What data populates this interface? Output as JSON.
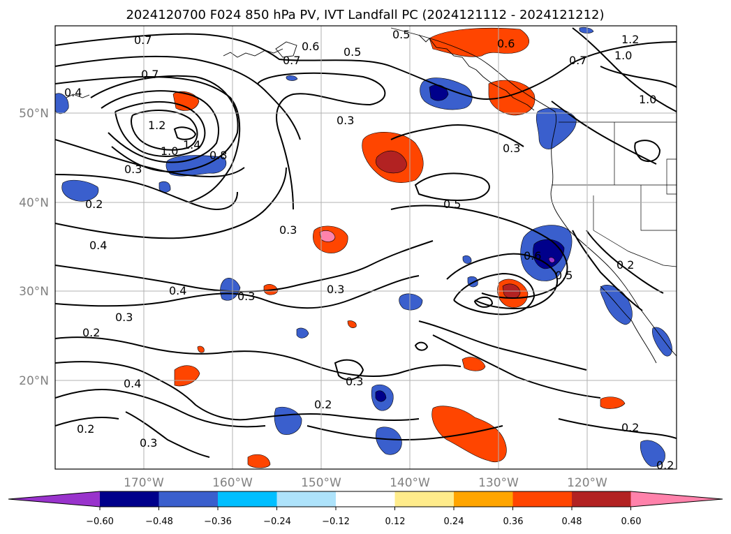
{
  "title": "2024120700 F024 850 hPa PV, IVT Landfall PC (2024121112 - 2024121212)",
  "map": {
    "lat_ticks": [
      "50°N",
      "40°N",
      "30°N",
      "20°N"
    ],
    "lon_ticks": [
      "170°W",
      "160°W",
      "150°W",
      "140°W",
      "130°W",
      "120°W"
    ],
    "gridlines": true,
    "contour_labels": [
      "0.7",
      "0.6",
      "0.5",
      "0.5",
      "0.7",
      "0.6",
      "1.2",
      "1.0",
      "0.7",
      "1.0",
      "0.7",
      "0.4",
      "1.2",
      "1.4",
      "1.0",
      "0.8",
      "0.3",
      "0.3",
      "0.3",
      "0.2",
      "0.5",
      "0.3",
      "0.4",
      "0.6",
      "0.5",
      "0.2",
      "0.4",
      "0.3",
      "0.3",
      "0.3",
      "0.2",
      "0.4",
      "0.3",
      "0.2",
      "0.2",
      "0.3",
      "0.2",
      "0.2"
    ]
  },
  "colorbar": {
    "tick_labels": [
      "−0.60",
      "−0.48",
      "−0.36",
      "−0.24",
      "−0.12",
      "0.12",
      "0.24",
      "0.36",
      "0.48",
      "0.60"
    ],
    "colors": [
      "#9933cc",
      "#00008b",
      "#3a5fcd",
      "#00bfff",
      "#aee3fb",
      "#ffffff",
      "#ffec8b",
      "#ffa500",
      "#ff4500",
      "#b22222",
      "#ff82ab"
    ],
    "extend": "both"
  }
}
